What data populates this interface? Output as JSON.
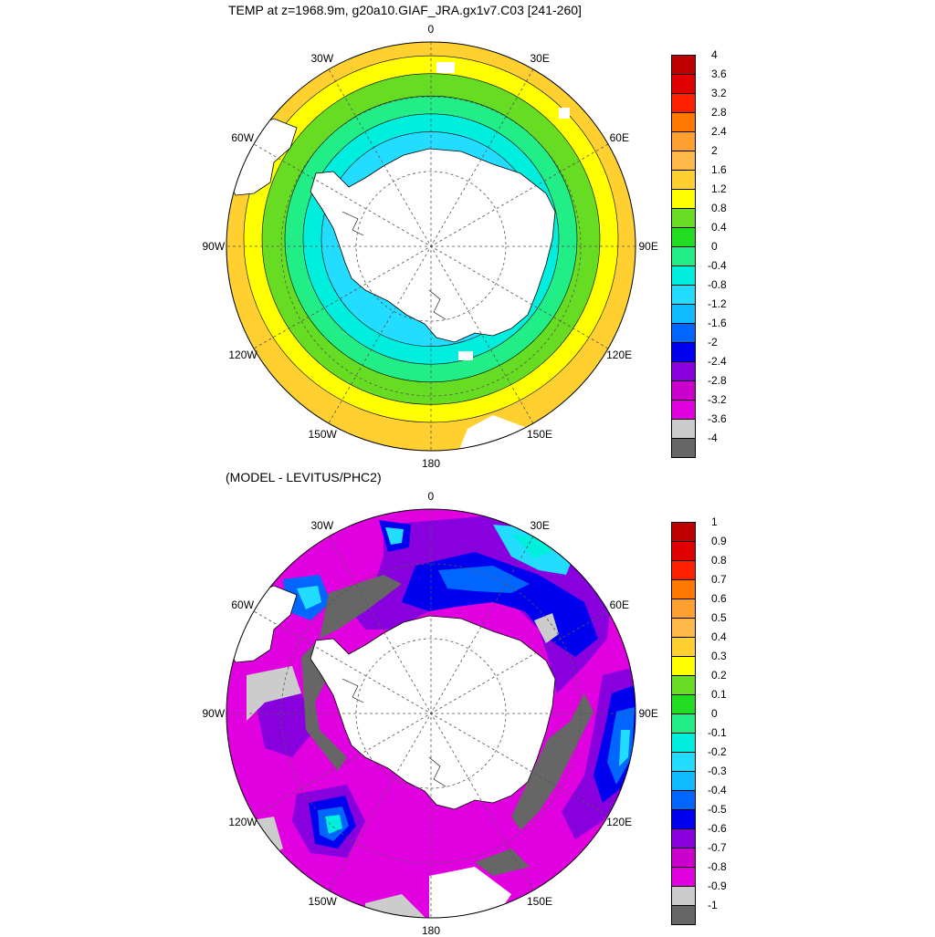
{
  "panels": [
    {
      "title": "TEMP at z=1968.9m, g20a10.GIAF_JRA.gx1v7.C03 [241-260]",
      "longitude_labels": [
        "0",
        "30E",
        "60E",
        "90E",
        "120E",
        "150E",
        "180",
        "150W",
        "120W",
        "90W",
        "60W",
        "30W"
      ],
      "colorbar": {
        "ticks": [
          "4",
          "3.6",
          "3.2",
          "2.8",
          "2.4",
          "2",
          "1.6",
          "1.2",
          "0.8",
          "0.4",
          "0",
          "-0.4",
          "-0.8",
          "-1.2",
          "-1.6",
          "-2",
          "-2.4",
          "-2.8",
          "-3.2",
          "-3.6",
          "-4"
        ],
        "colors": [
          "#c00000",
          "#e00000",
          "#ff2000",
          "#ff7a00",
          "#ffa030",
          "#ffb848",
          "#ffd030",
          "#ffff00",
          "#66dd22",
          "#22dd22",
          "#22ee88",
          "#00eedd",
          "#22ddff",
          "#11bbff",
          "#0066ff",
          "#0000ee",
          "#8800dd",
          "#cc00cc",
          "#e000e0",
          "#cccccc",
          "#666666"
        ]
      }
    },
    {
      "title": "(MODEL - LEVITUS/PHC2)",
      "longitude_labels": [
        "0",
        "30E",
        "60E",
        "90E",
        "120E",
        "150E",
        "180",
        "150W",
        "120W",
        "90W",
        "60W",
        "30W"
      ],
      "colorbar": {
        "ticks": [
          "1",
          "0.9",
          "0.8",
          "0.7",
          "0.6",
          "0.5",
          "0.4",
          "0.3",
          "0.2",
          "0.1",
          "0",
          "-0.1",
          "-0.2",
          "-0.3",
          "-0.4",
          "-0.5",
          "-0.6",
          "-0.7",
          "-0.8",
          "-0.9",
          "-1"
        ],
        "colors": [
          "#c00000",
          "#e00000",
          "#ff2000",
          "#ff7a00",
          "#ffa030",
          "#ffb848",
          "#ffd030",
          "#ffff00",
          "#66dd22",
          "#22dd22",
          "#22ee88",
          "#00eedd",
          "#22ddff",
          "#11bbff",
          "#0066ff",
          "#0000ee",
          "#8800dd",
          "#cc00cc",
          "#e000e0",
          "#cccccc",
          "#666666"
        ]
      }
    }
  ],
  "fields": {
    "top_rings": [
      {
        "level": "0.8 to 1.2",
        "color": "#ffd030"
      },
      {
        "level": "0.4 to 0.8",
        "color": "#ffff00"
      },
      {
        "level": "0 to 0.4",
        "color": "#66dd22"
      },
      {
        "level": "-0.4 to 0",
        "color": "#22ee88"
      },
      {
        "level": "-0.8 to -0.4",
        "color": "#00eedd"
      },
      {
        "level": "-1.2 to -0.8",
        "color": "#22ddff"
      }
    ],
    "bottom_colors": {
      "magenta": "#e000e0",
      "purple": "#8800dd",
      "dark_blue": "#0000ee",
      "blue": "#0066ff",
      "sky": "#22ddff",
      "cyan": "#00eedd",
      "light_gray": "#cccccc",
      "dark_gray": "#666666"
    },
    "land_color": "#ffffff"
  }
}
